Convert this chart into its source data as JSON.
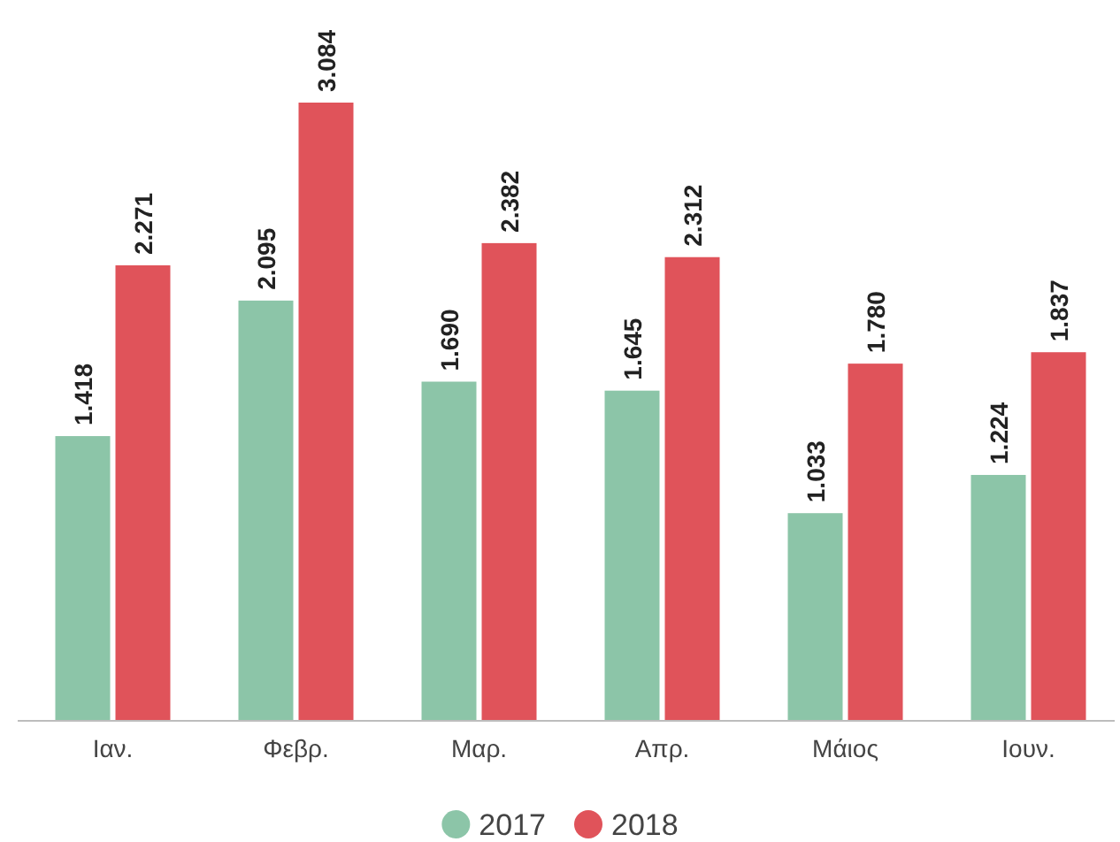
{
  "chart_data": {
    "type": "bar",
    "categories": [
      "Ιαν.",
      "Φεβρ.",
      "Μαρ.",
      "Απρ.",
      "Μάιος",
      "Ιουν."
    ],
    "series": [
      {
        "name": "2017",
        "color": "#8cc5a8",
        "values": [
          1418,
          2095,
          1690,
          1645,
          1033,
          1224
        ],
        "value_labels": [
          "1.418",
          "2.095",
          "1.690",
          "1.645",
          "1.033",
          "1.224"
        ]
      },
      {
        "name": "2018",
        "color": "#e0535a",
        "values": [
          2271,
          3084,
          2382,
          2312,
          1780,
          1837
        ],
        "value_labels": [
          "2.271",
          "3.084",
          "2.382",
          "2.312",
          "1.780",
          "1.837"
        ]
      }
    ],
    "legend": "bottom"
  }
}
